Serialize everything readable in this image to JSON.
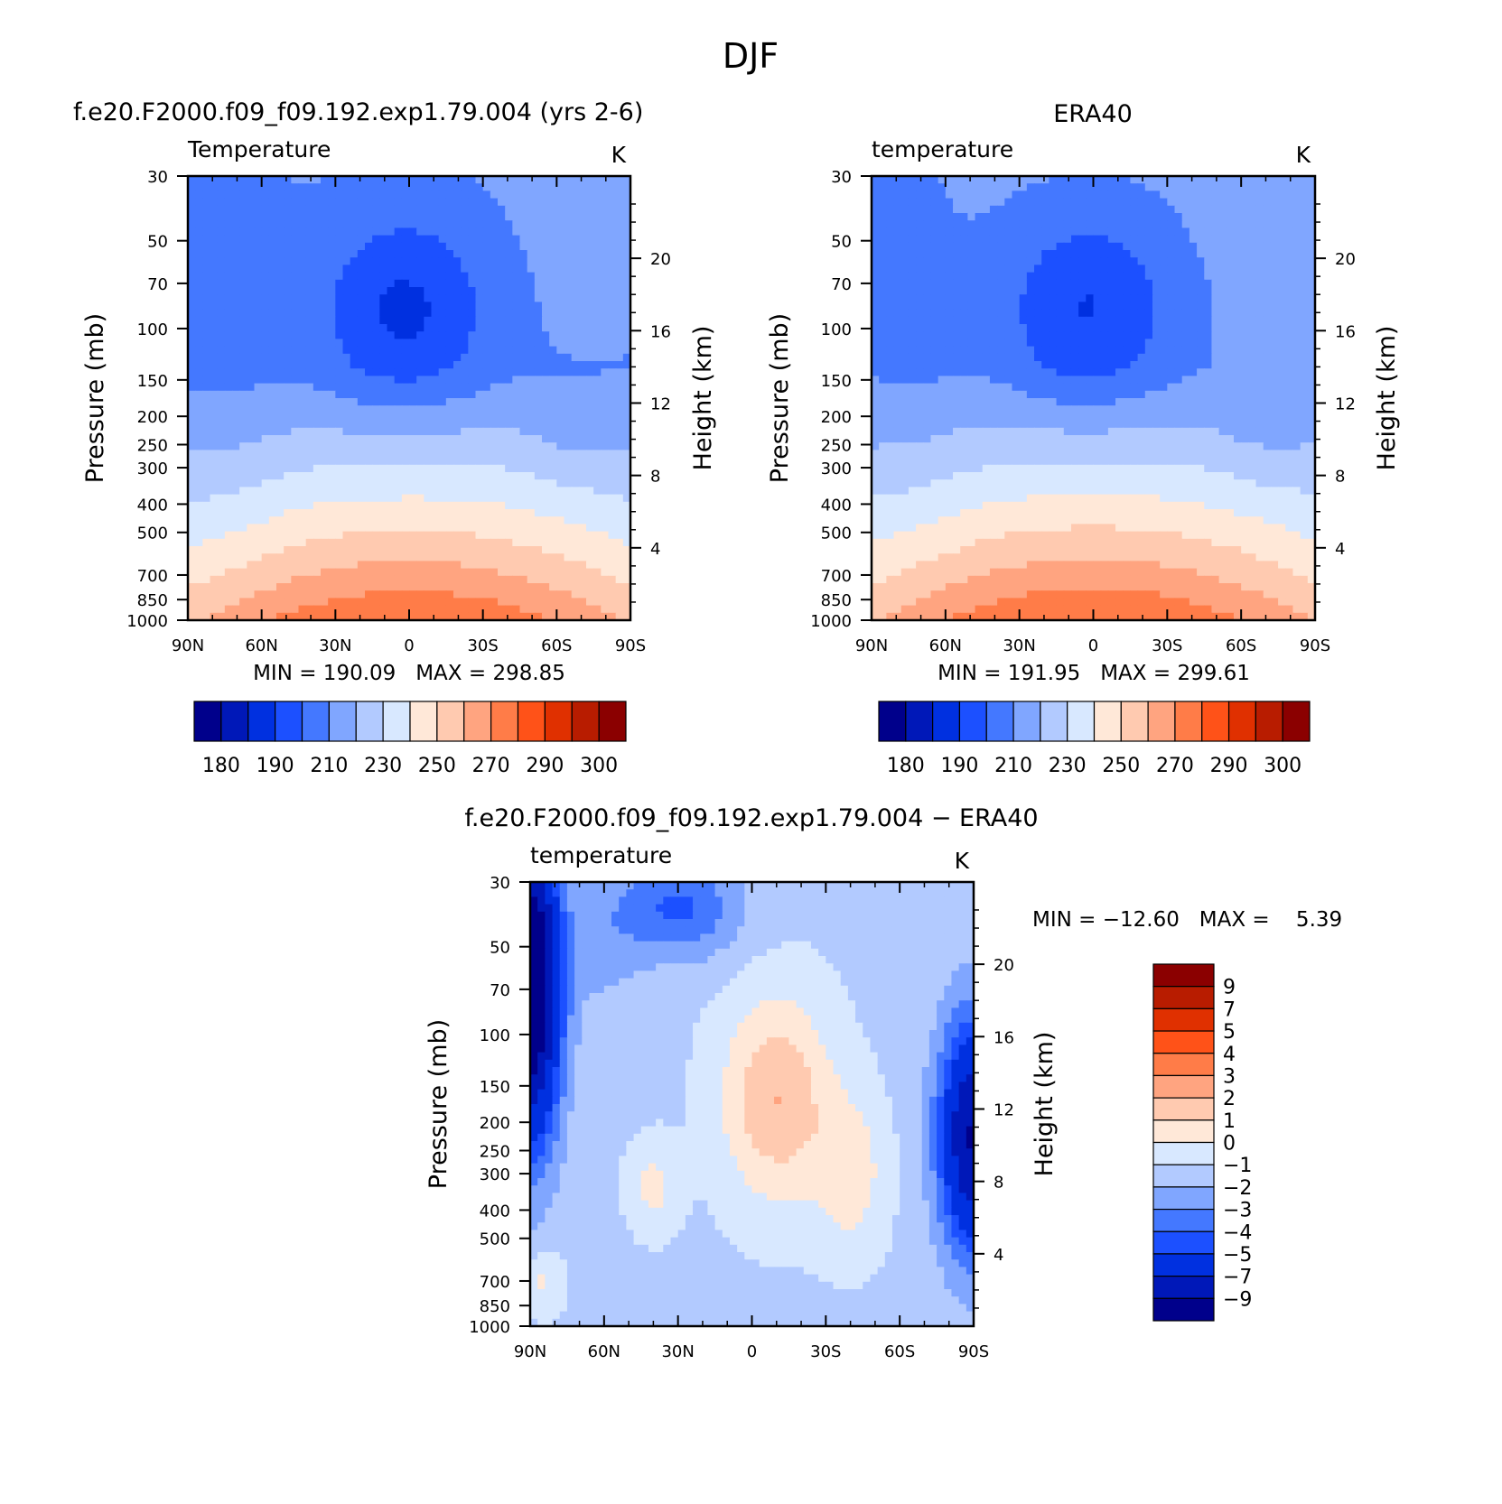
{
  "title": "DJF",
  "panels": [
    {
      "id": "model",
      "header": "f.e20.F2000.f09_f09.192.exp1.79.004 (yrs 2-6)",
      "sublabel": "Temperature",
      "units": "K",
      "ylabel": "Pressure (mb)",
      "ylabel2": "Height (km)",
      "stats": "MIN = 190.09   MAX = 298.85"
    },
    {
      "id": "obs",
      "header": "ERA40",
      "sublabel": "temperature",
      "units": "K",
      "ylabel": "Pressure (mb)",
      "ylabel2": "Height (km)",
      "stats": "MIN = 191.95   MAX = 299.61"
    },
    {
      "id": "diff",
      "header": "f.e20.F2000.f09_f09.192.exp1.79.004 − ERA40",
      "sublabel": "temperature",
      "units": "K",
      "ylabel": "Pressure (mb)",
      "ylabel2": "Height (km)",
      "stats": "MIN = −12.60   MAX =    5.39"
    }
  ],
  "chart_data": [
    {
      "type": "heatmap",
      "title": "f.e20.F2000.f09_f09.192.exp1.79.004 (yrs 2-6)",
      "subtitle": "Temperature",
      "units": "K",
      "x_ticks": [
        "90N",
        "60N",
        "30N",
        "0",
        "30S",
        "60S",
        "90S"
      ],
      "x_values": [
        90,
        60,
        30,
        0,
        -30,
        -60,
        -90
      ],
      "y_ticks_pressure_mb": [
        30,
        50,
        70,
        100,
        150,
        200,
        250,
        300,
        400,
        500,
        700,
        850,
        1000
      ],
      "y_ticks_height_km": [
        4,
        8,
        12,
        16,
        20
      ],
      "y_scale": "log",
      "min": 190.09,
      "max": 298.85,
      "colorbar_levels": [
        180,
        185,
        190,
        200,
        210,
        220,
        230,
        240,
        250,
        260,
        270,
        280,
        290,
        295,
        300
      ],
      "colorbar_labels": [
        "180",
        "190",
        "210",
        "230",
        "250",
        "270",
        "290",
        "300"
      ]
    },
    {
      "type": "heatmap",
      "title": "ERA40",
      "subtitle": "temperature",
      "units": "K",
      "x_ticks": [
        "90N",
        "60N",
        "30N",
        "0",
        "30S",
        "60S",
        "90S"
      ],
      "x_values": [
        90,
        60,
        30,
        0,
        -30,
        -60,
        -90
      ],
      "y_ticks_pressure_mb": [
        30,
        50,
        70,
        100,
        150,
        200,
        250,
        300,
        400,
        500,
        700,
        850,
        1000
      ],
      "y_ticks_height_km": [
        4,
        8,
        12,
        16,
        20
      ],
      "y_scale": "log",
      "min": 191.95,
      "max": 299.61,
      "colorbar_levels": [
        180,
        185,
        190,
        200,
        210,
        220,
        230,
        240,
        250,
        260,
        270,
        280,
        290,
        295,
        300
      ],
      "colorbar_labels": [
        "180",
        "190",
        "210",
        "230",
        "250",
        "270",
        "290",
        "300"
      ]
    },
    {
      "type": "heatmap",
      "title": "f.e20.F2000.f09_f09.192.exp1.79.004 − ERA40",
      "subtitle": "temperature",
      "units": "K",
      "x_ticks": [
        "90N",
        "60N",
        "30N",
        "0",
        "30S",
        "60S",
        "90S"
      ],
      "x_values": [
        90,
        60,
        30,
        0,
        -30,
        -60,
        -90
      ],
      "y_ticks_pressure_mb": [
        30,
        50,
        70,
        100,
        150,
        200,
        250,
        300,
        400,
        500,
        700,
        850,
        1000
      ],
      "y_ticks_height_km": [
        4,
        8,
        12,
        16,
        20
      ],
      "y_scale": "log",
      "min": -12.6,
      "max": 5.39,
      "colorbar_levels": [
        9,
        7,
        5,
        4,
        3,
        2,
        1,
        0,
        -1,
        -2,
        -3,
        -4,
        -5,
        -7,
        -9
      ],
      "colorbar_labels": [
        "9",
        "7",
        "5",
        "4",
        "3",
        "2",
        "1",
        "0",
        "−1",
        "−2",
        "−3",
        "−4",
        "−5",
        "−7",
        "−9"
      ]
    }
  ],
  "palette": [
    "#00008b",
    "#0018b8",
    "#0030e0",
    "#1c50ff",
    "#4478ff",
    "#80a6ff",
    "#b2caff",
    "#d8e8ff",
    "#ffe8d8",
    "#ffcab0",
    "#ffa480",
    "#ff7c48",
    "#ff5218",
    "#e03000",
    "#b81c00",
    "#8b0000"
  ]
}
